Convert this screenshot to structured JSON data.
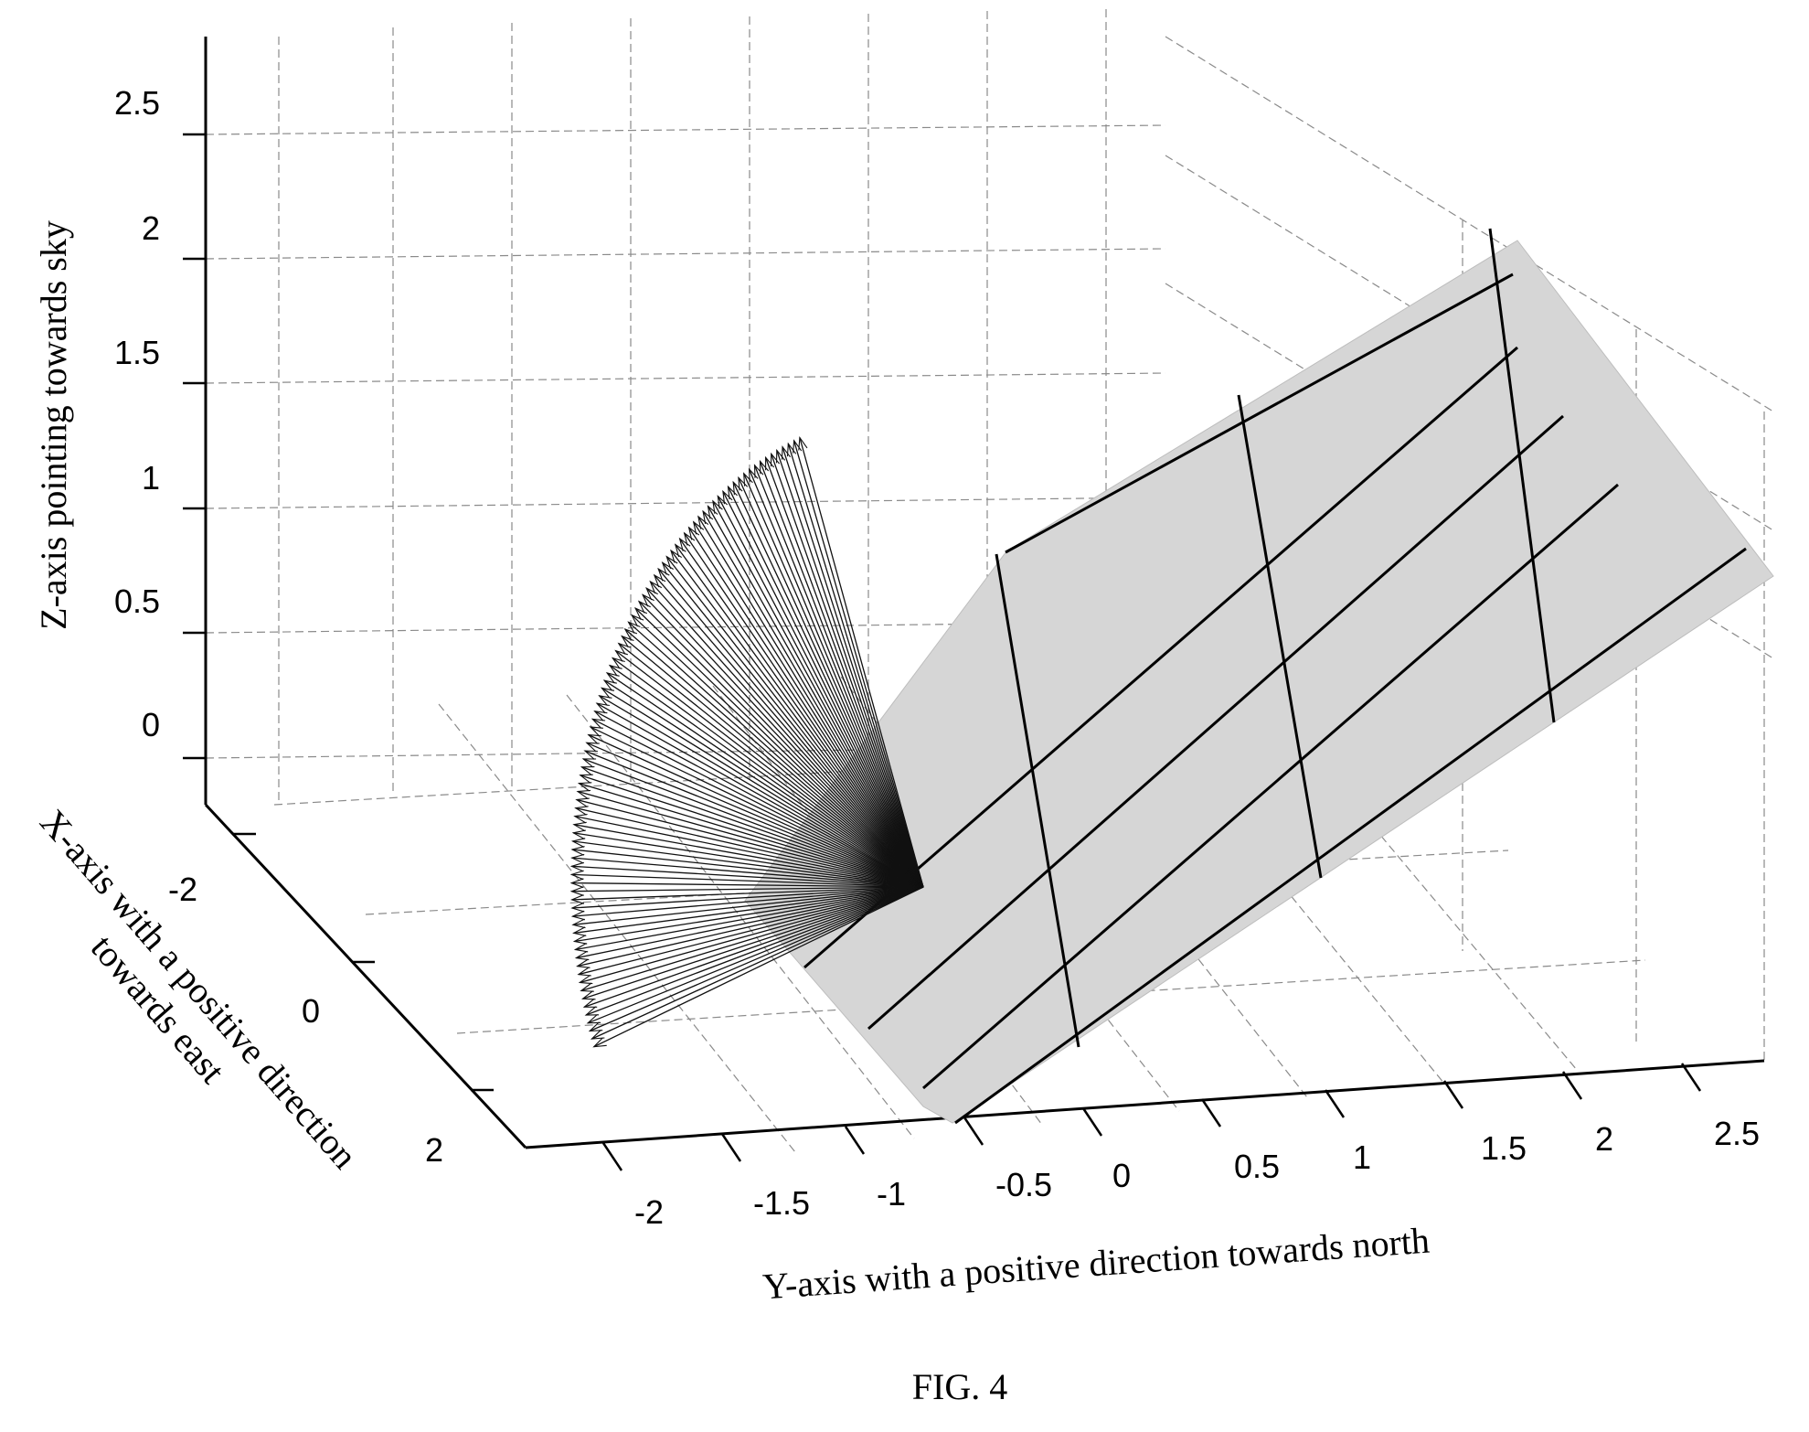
{
  "chart_data": {
    "type": "3d-vector-plot",
    "zlabel": "Z-axis pointing towards sky",
    "xlabel": "X-axis with a positive direction towards east",
    "ylabel": "Y-axis with a positive direction towards north",
    "xlabel_lines": [
      "X-axis with a positive direction",
      "towards east"
    ],
    "x_ticks": [
      "-2",
      "0",
      "2"
    ],
    "y_ticks": [
      "-2",
      "-1.5",
      "-1",
      "-0.5",
      "0",
      "0.5",
      "1",
      "1.5",
      "2",
      "2.5"
    ],
    "z_ticks": [
      "0",
      "0.5",
      "1",
      "1.5",
      "2",
      "2.5"
    ],
    "xlim": [
      -3,
      3
    ],
    "ylim": [
      -2.5,
      3
    ],
    "zlim": [
      -0.4,
      2.8
    ],
    "grid": true,
    "vector_origin": [
      0,
      0,
      0
    ],
    "vectors": {
      "count": 90,
      "length": 1,
      "azimuth_deg_range": [
        0,
        90
      ],
      "elevation_deg": 30
    },
    "panel": {
      "y_range": [
        0,
        3
      ],
      "x_range": [
        -2.5,
        2.5
      ],
      "tilt_deg": 30,
      "divisions_along": 3,
      "divisions_across": 5
    }
  },
  "caption": "FIG. 4"
}
